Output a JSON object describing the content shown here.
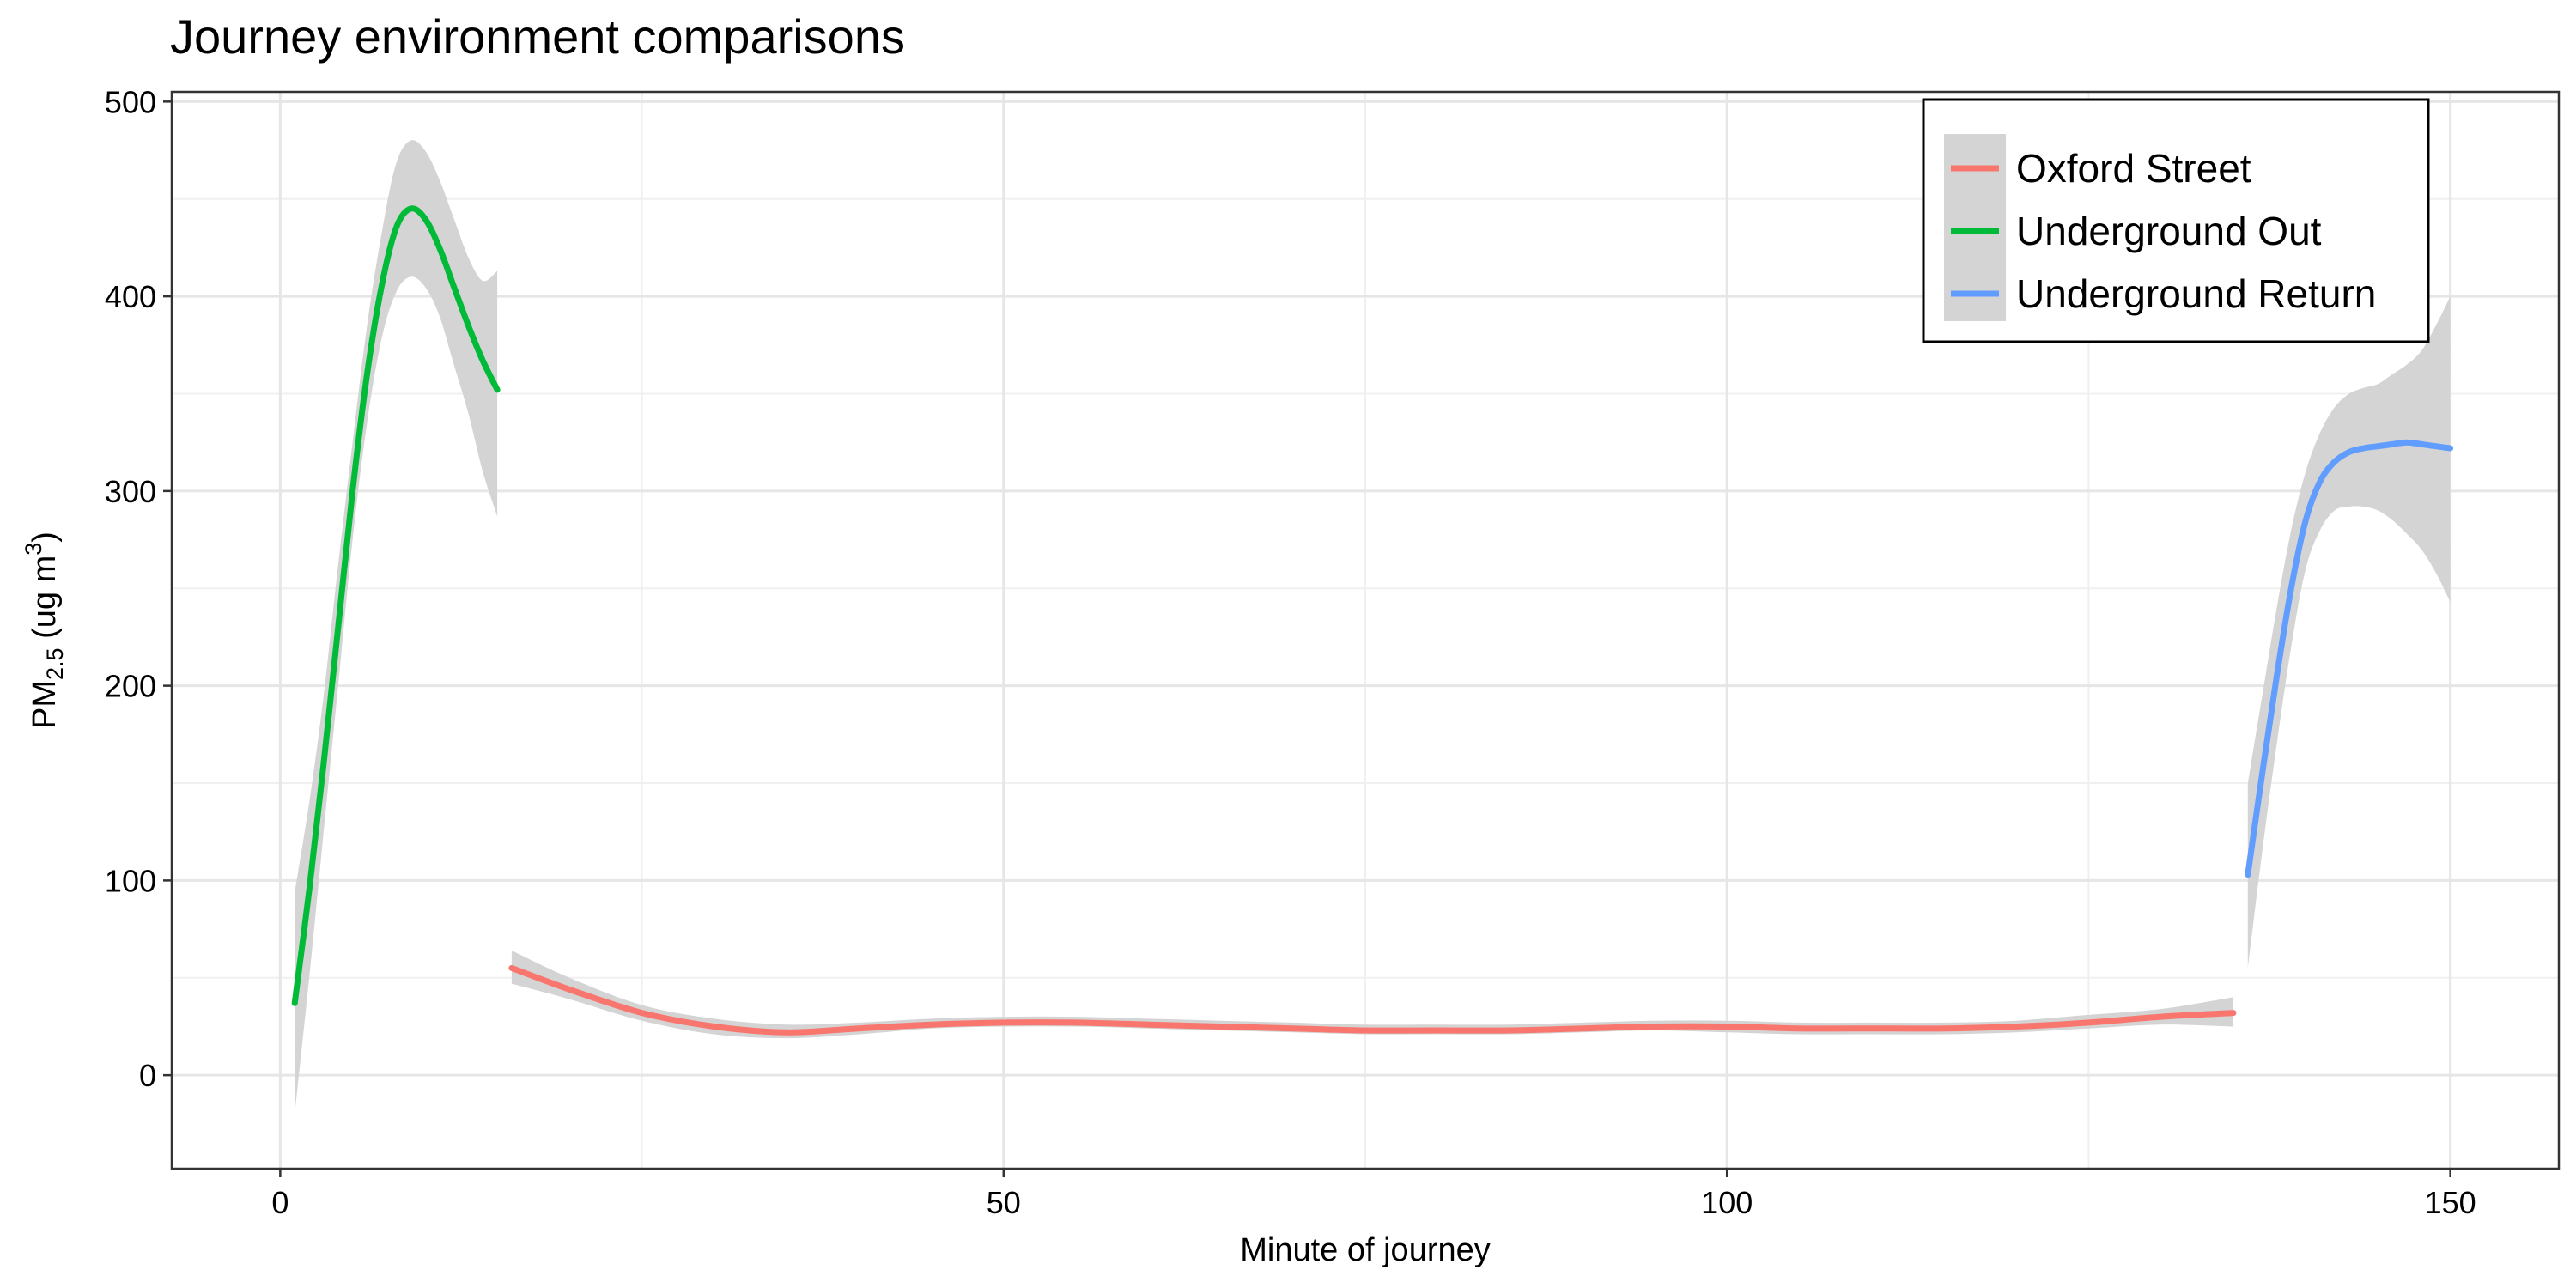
{
  "chart_data": {
    "type": "line",
    "title": "Journey environment comparisons",
    "xlabel": "Minute of journey",
    "ylabel": {
      "prefix": "PM",
      "subscript": "2.5",
      "unit_open": " (ug m",
      "superscript": "3",
      "unit_close": ")"
    },
    "xlim": [
      -7.5,
      157.5
    ],
    "ylim": [
      -48,
      505
    ],
    "x_ticks": [
      0,
      50,
      100,
      150
    ],
    "y_ticks": [
      0,
      100,
      200,
      300,
      400,
      500
    ],
    "x_tick_labels": [
      "0",
      "50",
      "100",
      "150"
    ],
    "y_tick_labels": [
      "0",
      "100",
      "200",
      "300",
      "400",
      "500"
    ],
    "x_minor_ticks": [
      25,
      75,
      125
    ],
    "y_minor_ticks": [
      50,
      150,
      250,
      350,
      450
    ],
    "grid": true,
    "legend_position": "top-right",
    "confidence_band_color": "#d4d4d4",
    "series": [
      {
        "name": "Oxford Street",
        "color": "#f8766d",
        "x": [
          16,
          20,
          25,
          30,
          35,
          40,
          45,
          50,
          55,
          60,
          65,
          70,
          75,
          80,
          85,
          90,
          95,
          100,
          105,
          110,
          115,
          120,
          125,
          130,
          135
        ],
        "y": [
          55,
          44,
          32,
          25,
          22,
          24,
          26,
          27,
          27,
          26,
          25,
          24,
          23,
          23,
          23,
          24,
          25,
          25,
          24,
          24,
          24,
          25,
          27,
          30,
          32
        ],
        "lower": [
          47,
          39,
          28,
          21,
          19,
          21,
          24,
          25,
          25,
          24,
          23,
          22,
          21,
          21,
          21,
          22,
          23,
          22,
          21,
          21,
          21,
          22,
          24,
          26,
          25
        ],
        "upper": [
          64,
          50,
          36,
          29,
          26,
          27,
          29,
          30,
          30,
          29,
          28,
          27,
          26,
          26,
          26,
          27,
          28,
          28,
          27,
          27,
          27,
          28,
          31,
          34,
          40
        ]
      },
      {
        "name": "Underground Out",
        "color": "#00ba38",
        "x": [
          1,
          2,
          3,
          4,
          5,
          6,
          7,
          8,
          9,
          10,
          11,
          12,
          13,
          14,
          15
        ],
        "y": [
          37,
          95,
          160,
          230,
          300,
          360,
          405,
          435,
          445,
          440,
          425,
          405,
          385,
          367,
          352
        ],
        "lower": [
          -20,
          50,
          125,
          200,
          275,
          335,
          378,
          402,
          410,
          405,
          390,
          365,
          340,
          310,
          287
        ],
        "upper": [
          94,
          140,
          195,
          262,
          325,
          385,
          432,
          468,
          480,
          475,
          460,
          440,
          420,
          408,
          413
        ]
      },
      {
        "name": "Underground Return",
        "color": "#619cff",
        "x": [
          136,
          137,
          138,
          139,
          140,
          141,
          142,
          143,
          144,
          145,
          146,
          147,
          148,
          149,
          150
        ],
        "y": [
          103,
          155,
          205,
          250,
          285,
          305,
          315,
          320,
          322,
          323,
          324,
          325,
          324,
          323,
          322
        ],
        "lower": [
          55,
          115,
          170,
          220,
          260,
          280,
          290,
          292,
          292,
          290,
          285,
          278,
          270,
          258,
          243
        ],
        "upper": [
          150,
          195,
          240,
          280,
          310,
          330,
          343,
          350,
          353,
          355,
          360,
          365,
          372,
          385,
          400
        ]
      }
    ]
  }
}
